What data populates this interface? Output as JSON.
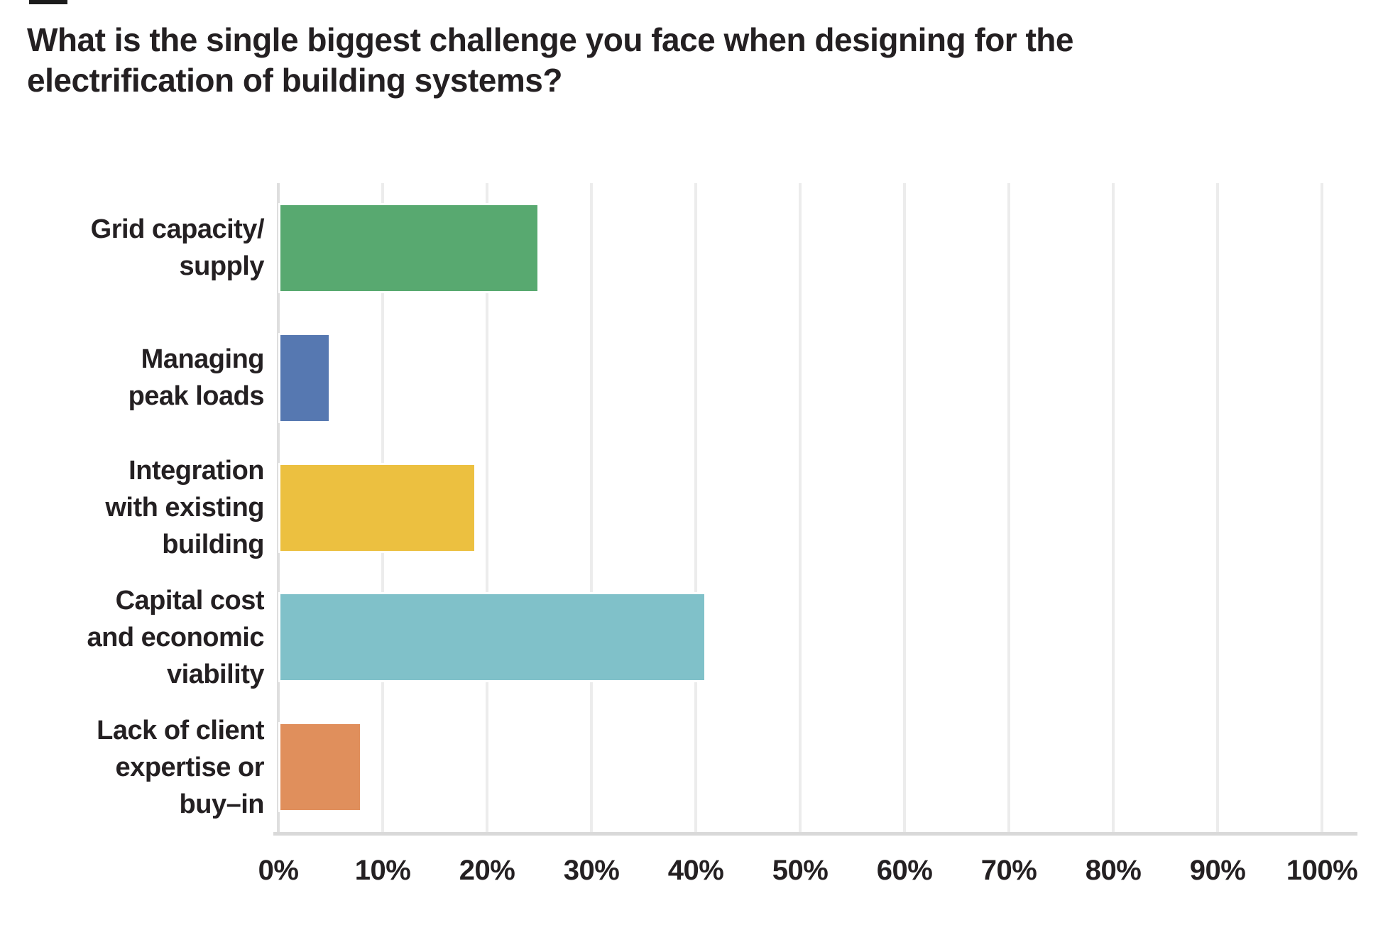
{
  "title": "What is the single biggest challenge you face when designing for the electrification of building systems?",
  "title_lines": [
    "What is the single biggest challenge you face when designing for the",
    "electrification of building systems?"
  ],
  "colors": {
    "text": "#242022",
    "background": "#ffffff",
    "gridline": "#ececec",
    "axis_line": "#d9d9d9"
  },
  "chart_data": {
    "type": "bar",
    "orientation": "horizontal",
    "title": "What is the single biggest challenge you face when designing for the electrification of building systems?",
    "xlabel": "",
    "ylabel": "",
    "xlim": [
      0,
      100
    ],
    "grid": true,
    "legend": false,
    "x_ticks": [
      "0%",
      "10%",
      "20%",
      "30%",
      "40%",
      "50%",
      "60%",
      "70%",
      "80%",
      "90%",
      "100%"
    ],
    "categories": [
      "Grid capacity/ supply",
      "Managing peak loads",
      "Integration with existing building",
      "Capital cost and economic viability",
      "Lack of client expertise or buy–in"
    ],
    "values": [
      25,
      5,
      19,
      41,
      8
    ],
    "unit": "%",
    "bars": [
      {
        "label": "Grid capacity/ supply",
        "label_lines": [
          "Grid capacity/",
          "supply"
        ],
        "value": 25,
        "color": "#58a970"
      },
      {
        "label": "Managing peak loads",
        "label_lines": [
          "Managing",
          "peak loads"
        ],
        "value": 5,
        "color": "#5678b1"
      },
      {
        "label": "Integration with existing building",
        "label_lines": [
          "Integration",
          "with existing",
          "building"
        ],
        "value": 19,
        "color": "#ecc040"
      },
      {
        "label": "Capital cost and economic viability",
        "label_lines": [
          "Capital cost",
          "and economic",
          "viability"
        ],
        "value": 41,
        "color": "#80c1c9"
      },
      {
        "label": "Lack of client expertise or buy–in",
        "label_lines": [
          "Lack of client",
          "expertise or",
          "buy–in"
        ],
        "value": 8,
        "color": "#e08f5c"
      }
    ]
  }
}
